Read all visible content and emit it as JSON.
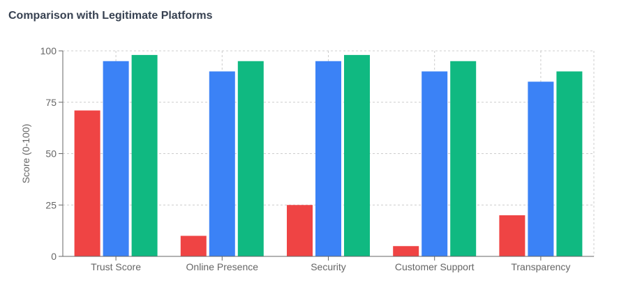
{
  "chart_data": {
    "type": "bar",
    "title": "Comparison with Legitimate Platforms",
    "xlabel": "",
    "ylabel": "Score (0-100)",
    "ylim": [
      0,
      100
    ],
    "yticks": [
      0,
      25,
      50,
      75,
      100
    ],
    "grid": true,
    "categories": [
      "Trust Score",
      "Online Presence",
      "Security",
      "Customer Support",
      "Transparency"
    ],
    "series": [
      {
        "values": [
          71,
          10,
          25,
          5,
          20
        ],
        "color": "#ef4444"
      },
      {
        "values": [
          95,
          90,
          95,
          90,
          85
        ],
        "color": "#3b82f6"
      },
      {
        "values": [
          98,
          95,
          98,
          95,
          90
        ],
        "color": "#10b981"
      }
    ]
  }
}
